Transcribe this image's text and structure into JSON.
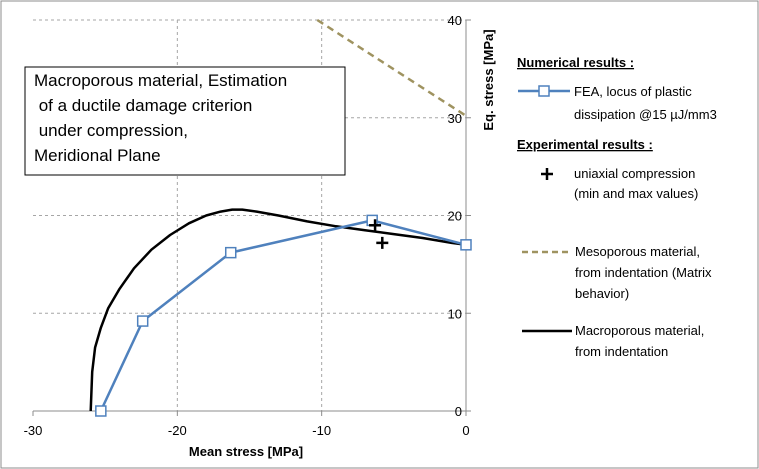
{
  "chart_data": {
    "type": "line",
    "title": "",
    "xlabel": "Mean stress [MPa]",
    "ylabel": "Eq. stress [MPa]",
    "xlim": [
      -30,
      0
    ],
    "ylim": [
      0,
      40
    ],
    "x_ticks": [
      "-30",
      "-20",
      "-10",
      "0"
    ],
    "y_ticks": [
      "0",
      "10",
      "20",
      "30",
      "40"
    ],
    "grid": true,
    "annotation": {
      "lines": [
        "Macroporous material, Estimation",
        " of a ductile damage criterion",
        " under compression,",
        "Meridional Plane"
      ]
    },
    "legend": {
      "numerical_heading": "Numerical results :",
      "experimental_heading": "Experimental results :"
    },
    "series": [
      {
        "name": "FEA, locus of plastic dissipation @15 µJ/mm3",
        "legend_lines": [
          "FEA, locus of plastic",
          "dissipation @15 µJ/mm3"
        ],
        "color": "#4f81bd",
        "marker": "square-open",
        "x": [
          -25.3,
          -22.4,
          -16.3,
          -6.5,
          0
        ],
        "y": [
          0,
          9.2,
          16.2,
          19.5,
          17.0
        ]
      },
      {
        "name": "uniaxial compression (min and max values)",
        "legend_lines": [
          "uniaxial compression",
          "(min and max values)"
        ],
        "color": "#000000",
        "marker": "plus",
        "x": [
          -6.3,
          -5.8
        ],
        "y": [
          19.0,
          17.2
        ]
      },
      {
        "name": "Mesoporous material, from indentation (Matrix behavior)",
        "legend_lines": [
          "Mesoporous material,",
          "from indentation (Matrix",
          "behavior)"
        ],
        "color": "#9f9360",
        "style": "dashed",
        "x": [
          -10.3,
          0
        ],
        "y": [
          40,
          30.2
        ]
      },
      {
        "name": "Macroporous material, from indentation",
        "legend_lines": [
          "Macroporous material,",
          "from indentation"
        ],
        "color": "#000000",
        "style": "solid",
        "x": [
          -26.0,
          -25.9,
          -25.7,
          -25.3,
          -24.8,
          -24.0,
          -23.0,
          -21.8,
          -20.5,
          -19.2,
          -18.0,
          -17.0,
          -16.2,
          -15.5,
          -14.5,
          -13.0,
          -11.0,
          -9.0,
          -7.0,
          -5.0,
          -3.0,
          -1.0,
          0
        ],
        "y": [
          0,
          4.0,
          6.5,
          8.5,
          10.5,
          12.5,
          14.6,
          16.5,
          18.0,
          19.2,
          20.0,
          20.4,
          20.6,
          20.6,
          20.4,
          20.0,
          19.4,
          18.9,
          18.5,
          18.1,
          17.7,
          17.2,
          17.0
        ]
      }
    ]
  }
}
